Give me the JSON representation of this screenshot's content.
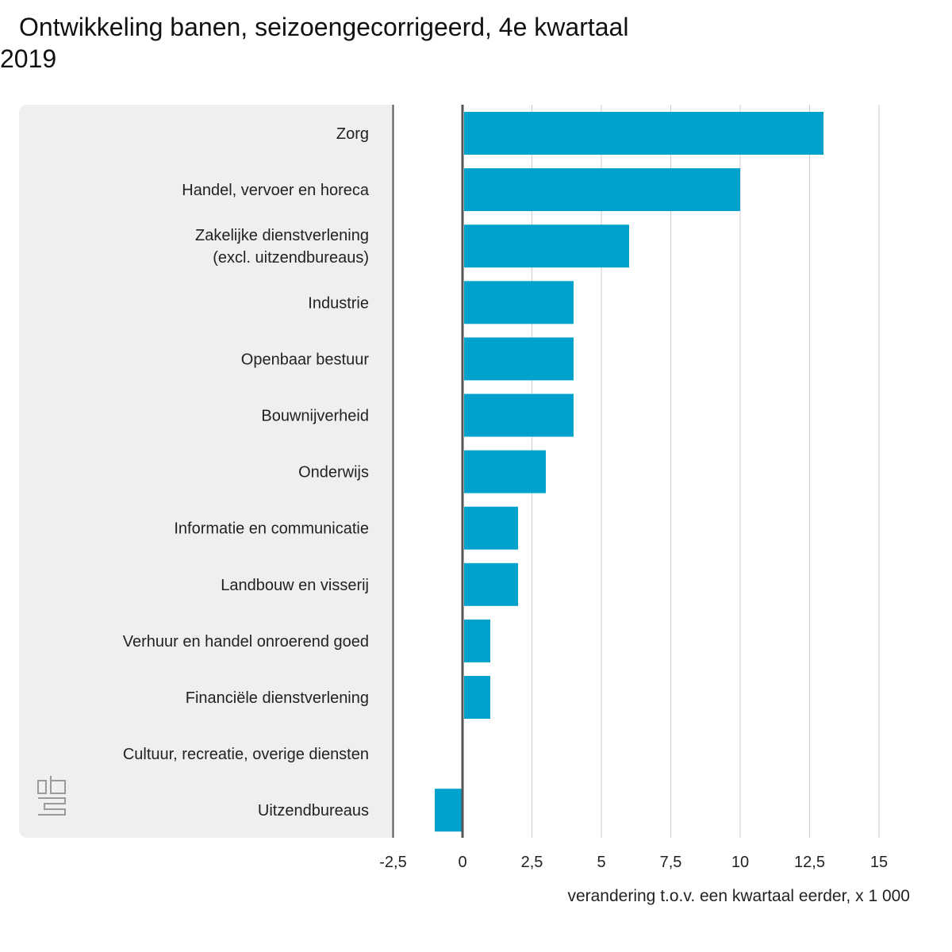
{
  "title_line1": "Ontwikkeling banen, seizoengecorrigeerd, 4e kwartaal",
  "title_line2": "2019",
  "logo_text": "cbs",
  "colors": {
    "bar": "#00a1cd",
    "panel": "#efefef",
    "axis": "#555555",
    "grid": "#cccccc",
    "text": "#222222"
  },
  "chart_data": {
    "type": "bar",
    "orientation": "horizontal",
    "categories": [
      "Zorg",
      "Handel, vervoer en horeca",
      "Zakelijke dienstverlening (excl. uitzendbureaus)",
      "Industrie",
      "Openbaar bestuur",
      "Bouwnijverheid",
      "Onderwijs",
      "Informatie en communicatie",
      "Landbouw en visserij",
      "Verhuur en handel onroerend goed",
      "Financiële dienstverlening",
      "Cultuur, recreatie, overige diensten",
      "Uitzendbureaus"
    ],
    "category_lines": [
      [
        "Zorg"
      ],
      [
        "Handel, vervoer en horeca"
      ],
      [
        "Zakelijke dienstverlening",
        "(excl. uitzendbureaus)"
      ],
      [
        "Industrie"
      ],
      [
        "Openbaar bestuur"
      ],
      [
        "Bouwnijverheid"
      ],
      [
        "Onderwijs"
      ],
      [
        "Informatie en communicatie"
      ],
      [
        "Landbouw en visserij"
      ],
      [
        "Verhuur en handel onroerend goed"
      ],
      [
        "Financiële dienstverlening"
      ],
      [
        "Cultuur, recreatie, overige diensten"
      ],
      [
        "Uitzendbureaus"
      ]
    ],
    "values": [
      13,
      10,
      6,
      4,
      4,
      4,
      3,
      2,
      2,
      1,
      1,
      0,
      -1
    ],
    "xlabel": "verandering t.o.v. een kwartaal eerder, x 1 000",
    "xlim": [
      -2.5,
      15
    ],
    "xticks": [
      -2.5,
      0,
      2.5,
      5,
      7.5,
      10,
      12.5,
      15
    ],
    "xtick_labels": [
      "-2,5",
      "0",
      "2,5",
      "5",
      "7,5",
      "10",
      "12,5",
      "15"
    ],
    "grid": true
  }
}
